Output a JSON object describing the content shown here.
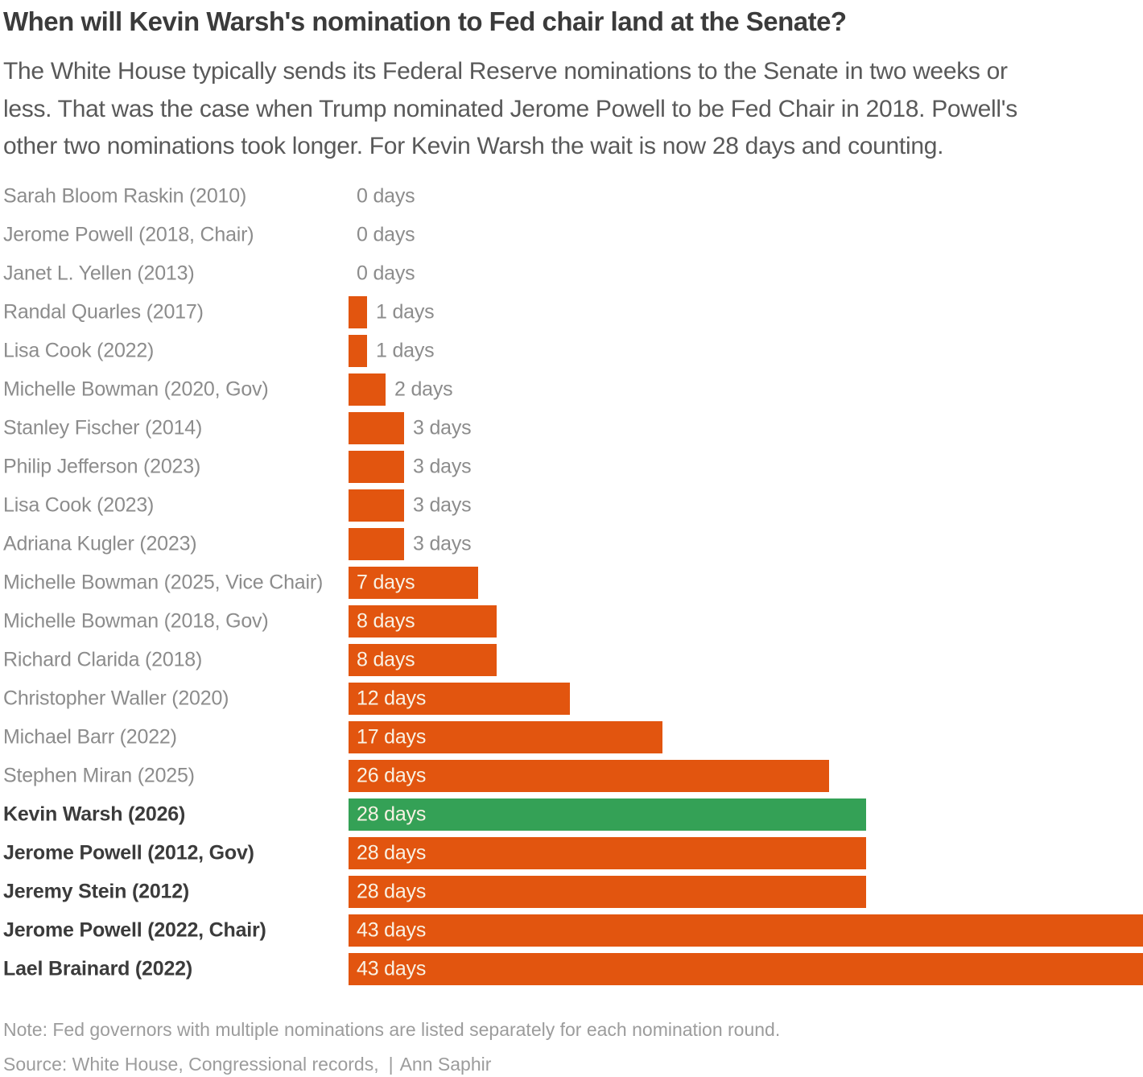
{
  "header": {
    "title": "When will Kevin Warsh's nomination to Fed chair land at the Senate?",
    "subtitle_lines": [
      "The White House typically sends its Federal Reserve nominations to the Senate in two weeks or",
      "less. That was the case when Trump nominated Jerome Powell to be Fed Chair in 2018. Powell's",
      "other two nominations took longer. For Kevin Warsh the wait is now 28 days and counting."
    ]
  },
  "chart_data": {
    "type": "bar",
    "orientation": "horizontal",
    "title": "When will Kevin Warsh's nomination to Fed chair land at the Senate?",
    "xlabel": "",
    "ylabel": "",
    "xlim": [
      0,
      43
    ],
    "grid": false,
    "legend": "none",
    "unit": "days",
    "bar_color": "#e2550f",
    "highlight_color": "#34a156",
    "highlight_index": 16,
    "bold_from_index": 16,
    "inside_label_min_value": 7,
    "categories": [
      "Sarah Bloom Raskin (2010)",
      "Jerome Powell (2018, Chair)",
      "Janet L. Yellen (2013)",
      "Randal Quarles (2017)",
      "Lisa Cook (2022)",
      "Michelle Bowman (2020, Gov)",
      "Stanley Fischer (2014)",
      "Philip Jefferson (2023)",
      "Lisa Cook (2023)",
      "Adriana Kugler (2023)",
      "Michelle Bowman (2025, Vice Chair)",
      "Michelle Bowman (2018, Gov)",
      "Richard Clarida (2018)",
      "Christopher Waller (2020)",
      "Michael Barr (2022)",
      "Stephen Miran (2025)",
      "Kevin Warsh (2026)",
      "Jerome Powell (2012, Gov)",
      "Jeremy Stein (2012)",
      "Jerome Powell (2022, Chair)",
      "Lael Brainard (2022)"
    ],
    "values": [
      0,
      0,
      0,
      1,
      1,
      2,
      3,
      3,
      3,
      3,
      7,
      8,
      8,
      12,
      17,
      26,
      28,
      28,
      28,
      43,
      43
    ],
    "value_labels": [
      "0 days",
      "0 days",
      "0 days",
      "1 days",
      "1 days",
      "2 days",
      "3 days",
      "3 days",
      "3 days",
      "3 days",
      "7 days",
      "8 days",
      "8 days",
      "12 days",
      "17 days",
      "26 days",
      "28 days",
      "28 days",
      "28 days",
      "43 days",
      "43 days"
    ]
  },
  "footer": {
    "note": "Note: Fed governors with multiple nominations are listed separately for each nomination round.",
    "source": "Source: White House, Congressional records,",
    "separator": "|",
    "byline": "Ann Saphir"
  }
}
